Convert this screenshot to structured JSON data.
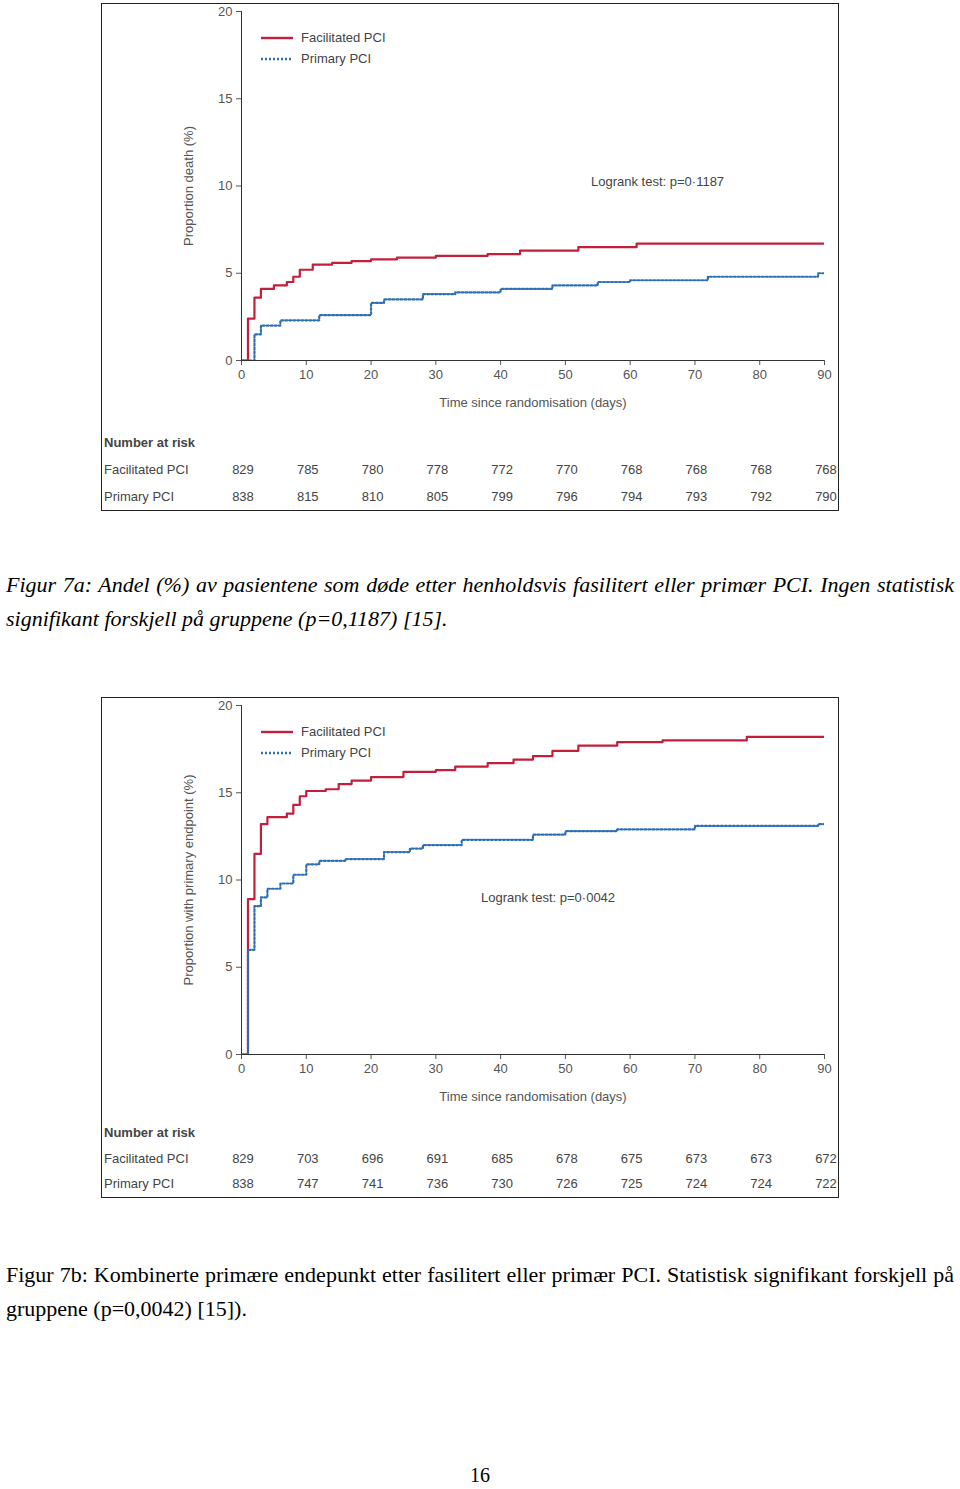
{
  "chart_data": [
    {
      "type": "step",
      "y_label": "Proportion death (%)",
      "x_label": "Time since randomisation (days)",
      "annotation": "Logrank test: p=0·1187",
      "xlim": [
        0,
        90
      ],
      "xticks": [
        0,
        10,
        20,
        30,
        40,
        50,
        60,
        70,
        80,
        90
      ],
      "ylim": [
        0,
        20
      ],
      "yticks": [
        0,
        5,
        10,
        15,
        20
      ],
      "grid": false,
      "legend": "upper left",
      "series": [
        {
          "name": "Facilitated PCI",
          "color": "#c41e3a",
          "line_style": "solid",
          "x": [
            0,
            1,
            2,
            3,
            5,
            7,
            8,
            9,
            11,
            14,
            17,
            20,
            24,
            30,
            38,
            43,
            52,
            61,
            90
          ],
          "values": [
            0,
            2.4,
            3.6,
            4.1,
            4.3,
            4.5,
            4.8,
            5.2,
            5.5,
            5.6,
            5.7,
            5.8,
            5.9,
            6.0,
            6.1,
            6.3,
            6.5,
            6.7,
            6.7
          ]
        },
        {
          "name": "Primary PCI",
          "color": "#2f6fb5",
          "line_style": "dotted",
          "x": [
            0,
            2,
            3,
            6,
            12,
            20,
            22,
            28,
            33,
            40,
            48,
            55,
            60,
            72,
            89,
            90
          ],
          "values": [
            0,
            1.5,
            2.0,
            2.3,
            2.6,
            3.3,
            3.5,
            3.8,
            3.9,
            4.1,
            4.3,
            4.5,
            4.6,
            4.8,
            5.0,
            5.0
          ]
        }
      ],
      "risk_table": {
        "title": "Number at risk",
        "x": [
          0,
          10,
          20,
          30,
          40,
          50,
          60,
          70,
          80,
          90
        ],
        "rows": [
          {
            "name": "Facilitated PCI",
            "values": [
              829,
              785,
              780,
              778,
              772,
              770,
              768,
              768,
              768,
              768
            ]
          },
          {
            "name": "Primary PCI",
            "values": [
              838,
              815,
              810,
              805,
              799,
              796,
              794,
              793,
              792,
              790
            ]
          }
        ]
      },
      "caption": "Figur 7a: Andel (%) av pasientene som døde etter henholdsvis fasilitert eller primær PCI. Ingen statistisk signifikant forskjell på gruppene (p=0,1187) [15]."
    },
    {
      "type": "step",
      "y_label": "Proportion with primary endpoint (%)",
      "x_label": "Time since randomisation (days)",
      "annotation": "Logrank test: p=0·0042",
      "xlim": [
        0,
        90
      ],
      "xticks": [
        0,
        10,
        20,
        30,
        40,
        50,
        60,
        70,
        80,
        90
      ],
      "ylim": [
        0,
        20
      ],
      "yticks": [
        0,
        5,
        10,
        15,
        20
      ],
      "grid": false,
      "legend": "upper left",
      "series": [
        {
          "name": "Facilitated PCI",
          "color": "#c41e3a",
          "line_style": "solid",
          "x": [
            0,
            1,
            2,
            3,
            4,
            7,
            8,
            9,
            10,
            13,
            15,
            17,
            20,
            25,
            30,
            33,
            38,
            42,
            45,
            48,
            52,
            58,
            65,
            78,
            90
          ],
          "values": [
            0,
            8.9,
            11.5,
            13.2,
            13.6,
            13.8,
            14.3,
            14.8,
            15.1,
            15.2,
            15.5,
            15.7,
            15.9,
            16.2,
            16.3,
            16.5,
            16.7,
            16.9,
            17.1,
            17.4,
            17.7,
            17.9,
            18.0,
            18.2,
            18.2
          ]
        },
        {
          "name": "Primary PCI",
          "color": "#2f6fb5",
          "line_style": "dotted",
          "x": [
            0,
            1,
            2,
            3,
            4,
            6,
            8,
            10,
            12,
            16,
            22,
            26,
            28,
            34,
            45,
            50,
            58,
            70,
            89,
            90
          ],
          "values": [
            0,
            6.0,
            8.5,
            9.0,
            9.5,
            9.8,
            10.3,
            10.9,
            11.1,
            11.2,
            11.6,
            11.8,
            12.0,
            12.3,
            12.6,
            12.8,
            12.9,
            13.1,
            13.2,
            13.2
          ]
        }
      ],
      "risk_table": {
        "title": "Number at risk",
        "x": [
          0,
          10,
          20,
          30,
          40,
          50,
          60,
          70,
          80,
          90
        ],
        "rows": [
          {
            "name": "Facilitated PCI",
            "values": [
              829,
              703,
              696,
              691,
              685,
              678,
              675,
              673,
              673,
              672
            ]
          },
          {
            "name": "Primary PCI",
            "values": [
              838,
              747,
              741,
              736,
              730,
              726,
              725,
              724,
              724,
              722
            ]
          }
        ]
      },
      "caption": "Figur 7b: Kombinerte primære endepunkt etter fasilitert eller primær PCI. Statistisk signifikant forskjell på gruppene (p=0,0042) [15])."
    }
  ],
  "page_number": "16"
}
